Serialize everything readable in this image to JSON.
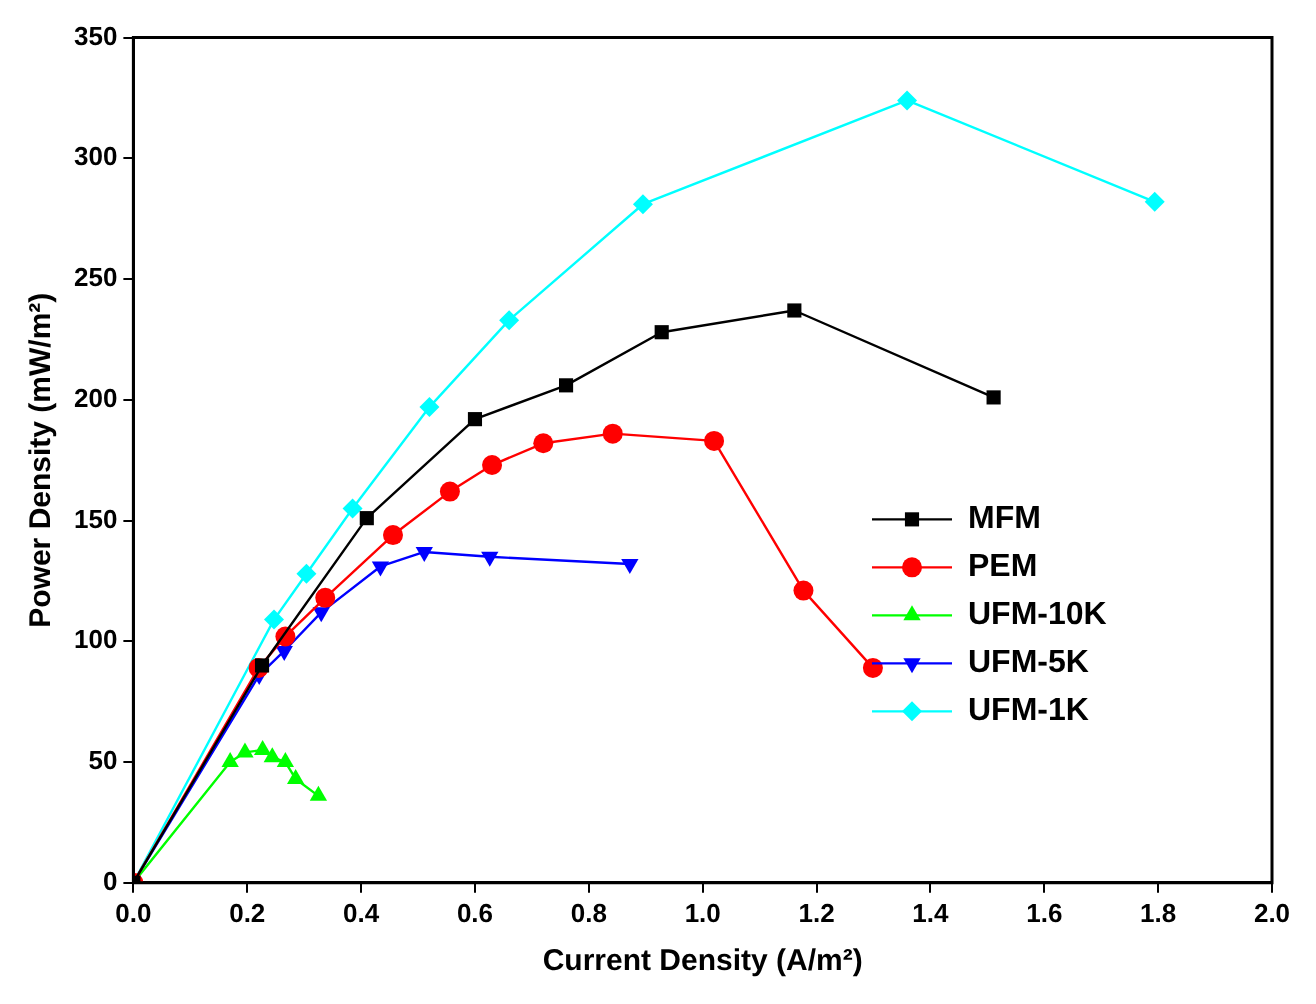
{
  "chart_data": {
    "type": "line",
    "xlabel": "Current Density (A/m²)",
    "ylabel": "Power Density (mW/m²)",
    "xlim": [
      0,
      2
    ],
    "xticks": [
      {
        "value": 0,
        "label": "0.0"
      },
      {
        "value": 0.2,
        "label": "0.2"
      },
      {
        "value": 0.4,
        "label": "0.4"
      },
      {
        "value": 0.6,
        "label": "0.6"
      },
      {
        "value": 0.8,
        "label": "0.8"
      },
      {
        "value": 1,
        "label": "1.0"
      },
      {
        "value": 1.2,
        "label": "1.2"
      },
      {
        "value": 1.4,
        "label": "1.4"
      },
      {
        "value": 1.6,
        "label": "1.6"
      },
      {
        "value": 1.8,
        "label": "1.8"
      },
      {
        "value": 2,
        "label": "2.0"
      }
    ],
    "ylim": [
      0,
      350
    ],
    "yticks": [
      0,
      50,
      100,
      150,
      200,
      250,
      300,
      350
    ],
    "grid": false,
    "legend": "right",
    "series": [
      {
        "name": "MFM",
        "color": "#000000",
        "marker": "square",
        "x": [
          0,
          0.226,
          0.41,
          0.6,
          0.76,
          0.928,
          1.161,
          1.511
        ],
        "values": [
          0,
          90,
          151,
          192,
          206,
          228,
          237,
          201
        ]
      },
      {
        "name": "PEM",
        "color": "#ff0000",
        "marker": "circle",
        "x": [
          0,
          0.22,
          0.267,
          0.337,
          0.456,
          0.556,
          0.63,
          0.72,
          0.842,
          1.02,
          1.177,
          1.299
        ],
        "values": [
          0,
          89,
          102,
          118,
          144,
          162,
          173,
          182,
          186,
          183,
          121,
          89
        ]
      },
      {
        "name": "UFM-10K",
        "color": "#00ff00",
        "marker": "triangle",
        "x": [
          0,
          0.17,
          0.196,
          0.227,
          0.244,
          0.267,
          0.285,
          0.325
        ],
        "values": [
          0,
          50,
          54,
          55,
          52,
          50,
          43,
          36
        ]
      },
      {
        "name": "UFM-5K",
        "color": "#0000ff",
        "marker": "triangle_down",
        "x": [
          0,
          0.221,
          0.265,
          0.33,
          0.434,
          0.511,
          0.626,
          0.872
        ],
        "values": [
          0,
          86,
          96,
          112,
          131,
          137,
          135,
          132
        ]
      },
      {
        "name": "UFM-1K",
        "color": "#00ffff",
        "marker": "diamond",
        "x": [
          0,
          0.247,
          0.304,
          0.385,
          0.52,
          0.66,
          0.895,
          1.359,
          1.794
        ],
        "values": [
          0,
          109,
          128,
          155,
          197,
          233,
          281,
          324,
          282
        ]
      }
    ]
  }
}
